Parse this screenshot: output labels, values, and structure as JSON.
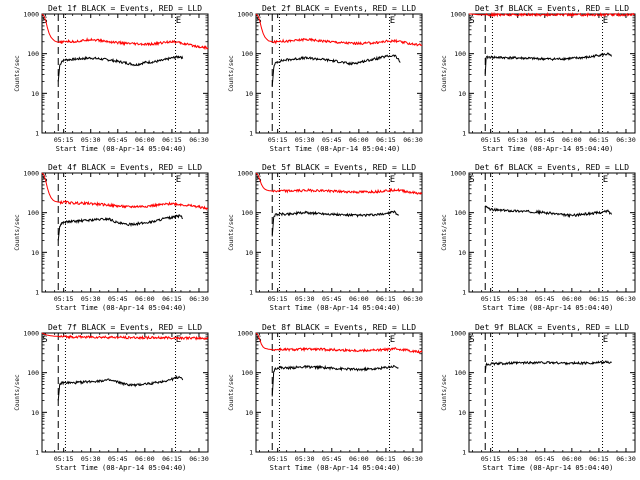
{
  "chart_data": [
    {
      "type": "line",
      "title": "Det 1f BLACK = Events, RED = LLD",
      "xlabel": "Start Time (08-Apr-14 05:04:40)",
      "ylabel": "Counts/sec",
      "yscale": "log",
      "ylim": [
        1,
        1000
      ],
      "xlim": [
        3,
        95
      ],
      "xticks": [
        "05:15",
        "05:30",
        "05:45",
        "06:00",
        "06:15",
        "06:30"
      ],
      "xtick_values": [
        15,
        30,
        45,
        60,
        75,
        90
      ],
      "yticks": [
        "1",
        "10",
        "100",
        "1000"
      ],
      "markers": [
        {
          "label": "S",
          "x": 3
        },
        {
          "label": "E",
          "x": 77
        }
      ],
      "dashed_line_x": 12,
      "dotted_lines_x": [
        16,
        77
      ],
      "series": [
        {
          "color": "#000000",
          "x": [
            12,
            12.8,
            14,
            16,
            20,
            30,
            40,
            50,
            55,
            60,
            65,
            70,
            75,
            80,
            81
          ],
          "y": [
            20,
            50,
            65,
            70,
            72,
            78,
            70,
            58,
            52,
            60,
            62,
            68,
            78,
            85,
            75
          ]
        },
        {
          "color": "#ff0000",
          "x": [
            3,
            4,
            5,
            6,
            7,
            8,
            9,
            10,
            11,
            12,
            14,
            16,
            20,
            25,
            30,
            40,
            50,
            60,
            65,
            70,
            75,
            80,
            85,
            90,
            95
          ],
          "y": [
            1000,
            900,
            700,
            450,
            320,
            260,
            230,
            210,
            200,
            195,
            190,
            205,
            200,
            210,
            230,
            200,
            180,
            170,
            175,
            190,
            205,
            185,
            165,
            150,
            140
          ]
        }
      ]
    },
    {
      "type": "line",
      "title": "Det 2f BLACK = Events, RED = LLD",
      "xlabel": "Start Time (08-Apr-14 05:04:40)",
      "ylabel": "Counts/sec",
      "yscale": "log",
      "ylim": [
        1,
        1000
      ],
      "xlim": [
        3,
        95
      ],
      "xticks": [
        "05:15",
        "05:30",
        "05:45",
        "06:00",
        "06:15",
        "06:30"
      ],
      "xtick_values": [
        15,
        30,
        45,
        60,
        75,
        90
      ],
      "yticks": [
        "1",
        "10",
        "100",
        "1000"
      ],
      "markers": [
        {
          "label": "S",
          "x": 3
        },
        {
          "label": "E",
          "x": 77
        }
      ],
      "dashed_line_x": 12,
      "dotted_lines_x": [
        16,
        77
      ],
      "series": [
        {
          "color": "#000000",
          "x": [
            12,
            12.8,
            14,
            16,
            20,
            30,
            40,
            50,
            55,
            60,
            65,
            70,
            75,
            80,
            82,
            83
          ],
          "y": [
            15,
            45,
            60,
            65,
            70,
            78,
            72,
            62,
            55,
            60,
            68,
            75,
            85,
            90,
            70,
            60
          ]
        },
        {
          "color": "#ff0000",
          "x": [
            3,
            4,
            5,
            6,
            7,
            8,
            9,
            10,
            11,
            12,
            14,
            16,
            20,
            25,
            30,
            40,
            50,
            60,
            70,
            75,
            80,
            85,
            90,
            95
          ],
          "y": [
            1000,
            900,
            700,
            450,
            320,
            260,
            230,
            210,
            205,
            200,
            195,
            210,
            205,
            215,
            230,
            210,
            190,
            180,
            190,
            205,
            210,
            190,
            175,
            165
          ]
        }
      ]
    },
    {
      "type": "line",
      "title": "Det 3f BLACK = Events, RED = LLD",
      "xlabel": "Start Time (08-Apr-14 05:04:40)",
      "ylabel": "Counts/sec",
      "yscale": "log",
      "ylim": [
        1,
        1000
      ],
      "xlim": [
        3,
        95
      ],
      "xticks": [
        "05:15",
        "05:30",
        "05:45",
        "06:00",
        "06:15",
        "06:30"
      ],
      "xtick_values": [
        15,
        30,
        45,
        60,
        75,
        90
      ],
      "yticks": [
        "1",
        "10",
        "100",
        "1000"
      ],
      "markers": [
        {
          "label": "S",
          "x": 3
        },
        {
          "label": "E",
          "x": 77
        }
      ],
      "dashed_line_x": 12,
      "dotted_lines_x": [
        16,
        77
      ],
      "series": [
        {
          "color": "#000000",
          "x": [
            12,
            12.5,
            14,
            20,
            30,
            40,
            50,
            60,
            70,
            75,
            80,
            82
          ],
          "y": [
            30,
            80,
            82,
            80,
            78,
            75,
            73,
            76,
            82,
            92,
            98,
            85
          ]
        },
        {
          "color": "#ff0000",
          "x": [
            3,
            4,
            6,
            8,
            10,
            14,
            20,
            30,
            40,
            50,
            60,
            70,
            80,
            90,
            95
          ],
          "y": [
            1000,
            1000,
            980,
            960,
            960,
            960,
            960,
            960,
            960,
            960,
            960,
            960,
            960,
            960,
            960
          ]
        }
      ]
    },
    {
      "type": "line",
      "title": "Det 4f BLACK = Events, RED = LLD",
      "xlabel": "Start Time (08-Apr-14 05:04:40)",
      "ylabel": "Counts/sec",
      "yscale": "log",
      "ylim": [
        1,
        1000
      ],
      "xlim": [
        3,
        95
      ],
      "xticks": [
        "05:15",
        "05:30",
        "05:45",
        "06:00",
        "06:15",
        "06:30"
      ],
      "xtick_values": [
        15,
        30,
        45,
        60,
        75,
        90
      ],
      "yticks": [
        "1",
        "10",
        "100",
        "1000"
      ],
      "markers": [
        {
          "label": "S",
          "x": 3
        },
        {
          "label": "E",
          "x": 77
        }
      ],
      "dashed_line_x": 12,
      "dotted_lines_x": [
        16,
        77
      ],
      "series": [
        {
          "color": "#000000",
          "x": [
            12,
            12.8,
            14,
            16,
            20,
            30,
            40,
            45,
            50,
            60,
            65,
            70,
            75,
            80,
            81
          ],
          "y": [
            20,
            45,
            55,
            58,
            60,
            65,
            70,
            55,
            50,
            55,
            60,
            70,
            75,
            85,
            70
          ]
        },
        {
          "color": "#ff0000",
          "x": [
            3,
            4,
            5,
            6,
            7,
            8,
            9,
            10,
            11,
            12,
            14,
            16,
            20,
            30,
            40,
            50,
            60,
            70,
            75,
            80,
            85,
            90,
            95
          ],
          "y": [
            1000,
            900,
            650,
            420,
            300,
            240,
            210,
            195,
            190,
            185,
            180,
            185,
            175,
            170,
            155,
            140,
            145,
            160,
            170,
            160,
            150,
            140,
            125
          ]
        }
      ]
    },
    {
      "type": "line",
      "title": "Det 5f BLACK = Events, RED = LLD",
      "xlabel": "Start Time (08-Apr-14 05:04:40)",
      "ylabel": "Counts/sec",
      "yscale": "log",
      "ylim": [
        1,
        1000
      ],
      "xlim": [
        3,
        95
      ],
      "xticks": [
        "05:15",
        "05:30",
        "05:45",
        "06:00",
        "06:15",
        "06:30"
      ],
      "xtick_values": [
        15,
        30,
        45,
        60,
        75,
        90
      ],
      "yticks": [
        "1",
        "10",
        "100",
        "1000"
      ],
      "markers": [
        {
          "label": "S",
          "x": 3
        },
        {
          "label": "E",
          "x": 77
        }
      ],
      "dashed_line_x": 12,
      "dotted_lines_x": [
        16,
        77
      ],
      "series": [
        {
          "color": "#000000",
          "x": [
            12,
            12.8,
            14,
            16,
            20,
            30,
            40,
            50,
            60,
            70,
            75,
            80,
            82
          ],
          "y": [
            25,
            80,
            90,
            92,
            92,
            100,
            95,
            88,
            85,
            88,
            95,
            105,
            85
          ]
        },
        {
          "color": "#ff0000",
          "x": [
            3,
            4,
            5,
            6,
            7,
            8,
            9,
            10,
            11,
            12,
            14,
            16,
            20,
            30,
            40,
            50,
            60,
            70,
            75,
            80,
            85,
            90,
            95
          ],
          "y": [
            1000,
            900,
            700,
            520,
            430,
            390,
            370,
            360,
            355,
            350,
            350,
            355,
            350,
            365,
            360,
            340,
            330,
            340,
            360,
            380,
            350,
            320,
            300
          ]
        }
      ]
    },
    {
      "type": "line",
      "title": "Det 6f BLACK = Events, RED = LLD",
      "xlabel": "Start Time (08-Apr-14 05:04:40)",
      "ylabel": "Counts/sec",
      "yscale": "log",
      "ylim": [
        1,
        1000
      ],
      "xlim": [
        3,
        95
      ],
      "xticks": [
        "05:15",
        "05:30",
        "05:45",
        "06:00",
        "06:15",
        "06:30"
      ],
      "xtick_values": [
        15,
        30,
        45,
        60,
        75,
        90
      ],
      "yticks": [
        "1",
        "10",
        "100",
        "1000"
      ],
      "markers": [
        {
          "label": "S",
          "x": 3
        },
        {
          "label": "E",
          "x": 77
        }
      ],
      "dashed_line_x": 12,
      "dotted_lines_x": [
        16,
        77
      ],
      "series": [
        {
          "color": "#000000",
          "x": [
            12,
            12.5,
            14,
            16,
            20,
            30,
            40,
            50,
            55,
            60,
            65,
            70,
            75,
            78,
            80,
            82
          ],
          "y": [
            150,
            140,
            125,
            118,
            115,
            110,
            105,
            95,
            88,
            85,
            90,
            95,
            100,
            105,
            110,
            90
          ]
        }
      ]
    },
    {
      "type": "line",
      "title": "Det 7f BLACK = Events, RED = LLD",
      "xlabel": "Start Time (08-Apr-14 05:04:40)",
      "ylabel": "Counts/sec",
      "yscale": "log",
      "ylim": [
        1,
        1000
      ],
      "xlim": [
        3,
        95
      ],
      "xticks": [
        "05:15",
        "05:30",
        "05:45",
        "06:00",
        "06:15",
        "06:30"
      ],
      "xtick_values": [
        15,
        30,
        45,
        60,
        75,
        90
      ],
      "yticks": [
        "1",
        "10",
        "100",
        "1000"
      ],
      "markers": [
        {
          "label": "S",
          "x": 3
        },
        {
          "label": "E",
          "x": 77
        }
      ],
      "dashed_line_x": 12,
      "dotted_lines_x": [
        16,
        77
      ],
      "series": [
        {
          "color": "#000000",
          "x": [
            12,
            12.8,
            14,
            16,
            20,
            30,
            40,
            45,
            50,
            55,
            60,
            65,
            70,
            75,
            80,
            81
          ],
          "y": [
            20,
            50,
            55,
            56,
            55,
            60,
            65,
            58,
            50,
            48,
            52,
            55,
            60,
            68,
            80,
            65
          ]
        },
        {
          "color": "#ff0000",
          "x": [
            3,
            4,
            6,
            8,
            10,
            12,
            14,
            20,
            30,
            40,
            50,
            60,
            70,
            80,
            90,
            95
          ],
          "y": [
            1000,
            950,
            880,
            850,
            830,
            820,
            810,
            800,
            790,
            780,
            770,
            760,
            760,
            750,
            740,
            730
          ]
        }
      ]
    },
    {
      "type": "line",
      "title": "Det 8f BLACK = Events, RED = LLD",
      "xlabel": "Start Time (08-Apr-14 05:04:40)",
      "ylabel": "Counts/sec",
      "yscale": "log",
      "ylim": [
        1,
        1000
      ],
      "xlim": [
        3,
        95
      ],
      "xticks": [
        "05:15",
        "05:30",
        "05:45",
        "06:00",
        "06:15",
        "06:30"
      ],
      "xtick_values": [
        15,
        30,
        45,
        60,
        75,
        90
      ],
      "yticks": [
        "1",
        "10",
        "100",
        "1000"
      ],
      "markers": [
        {
          "label": "S",
          "x": 3
        },
        {
          "label": "E",
          "x": 77
        }
      ],
      "dashed_line_x": 12,
      "dotted_lines_x": [
        16,
        77
      ],
      "series": [
        {
          "color": "#000000",
          "x": [
            12,
            12.8,
            14,
            16,
            20,
            30,
            40,
            50,
            60,
            70,
            75,
            80,
            82
          ],
          "y": [
            25,
            110,
            130,
            135,
            130,
            140,
            135,
            125,
            120,
            125,
            135,
            145,
            130
          ]
        },
        {
          "color": "#ff0000",
          "x": [
            3,
            4,
            5,
            6,
            7,
            8,
            9,
            10,
            11,
            12,
            14,
            16,
            20,
            30,
            40,
            50,
            60,
            70,
            75,
            80,
            85,
            90,
            95
          ],
          "y": [
            1000,
            900,
            700,
            520,
            440,
            410,
            400,
            390,
            385,
            380,
            380,
            385,
            380,
            390,
            385,
            370,
            360,
            370,
            380,
            400,
            380,
            350,
            330
          ]
        }
      ]
    },
    {
      "type": "line",
      "title": "Det 9f BLACK = Events, RED = LLD",
      "xlabel": "Start Time (08-Apr-14 05:04:40)",
      "ylabel": "Counts/sec",
      "yscale": "log",
      "ylim": [
        1,
        1000
      ],
      "xlim": [
        3,
        95
      ],
      "xticks": [
        "05:15",
        "05:30",
        "05:45",
        "06:00",
        "06:15",
        "06:30"
      ],
      "xtick_values": [
        15,
        30,
        45,
        60,
        75,
        90
      ],
      "yticks": [
        "1",
        "10",
        "100",
        "1000"
      ],
      "markers": [
        {
          "label": "S",
          "x": 3
        },
        {
          "label": "E",
          "x": 77
        }
      ],
      "dashed_line_x": 12,
      "dotted_lines_x": [
        16,
        77
      ],
      "series": [
        {
          "color": "#000000",
          "x": [
            12,
            12.5,
            14,
            20,
            30,
            40,
            50,
            60,
            70,
            75,
            80,
            82
          ],
          "y": [
            100,
            160,
            165,
            170,
            175,
            180,
            178,
            172,
            175,
            180,
            185,
            178
          ]
        }
      ]
    }
  ]
}
